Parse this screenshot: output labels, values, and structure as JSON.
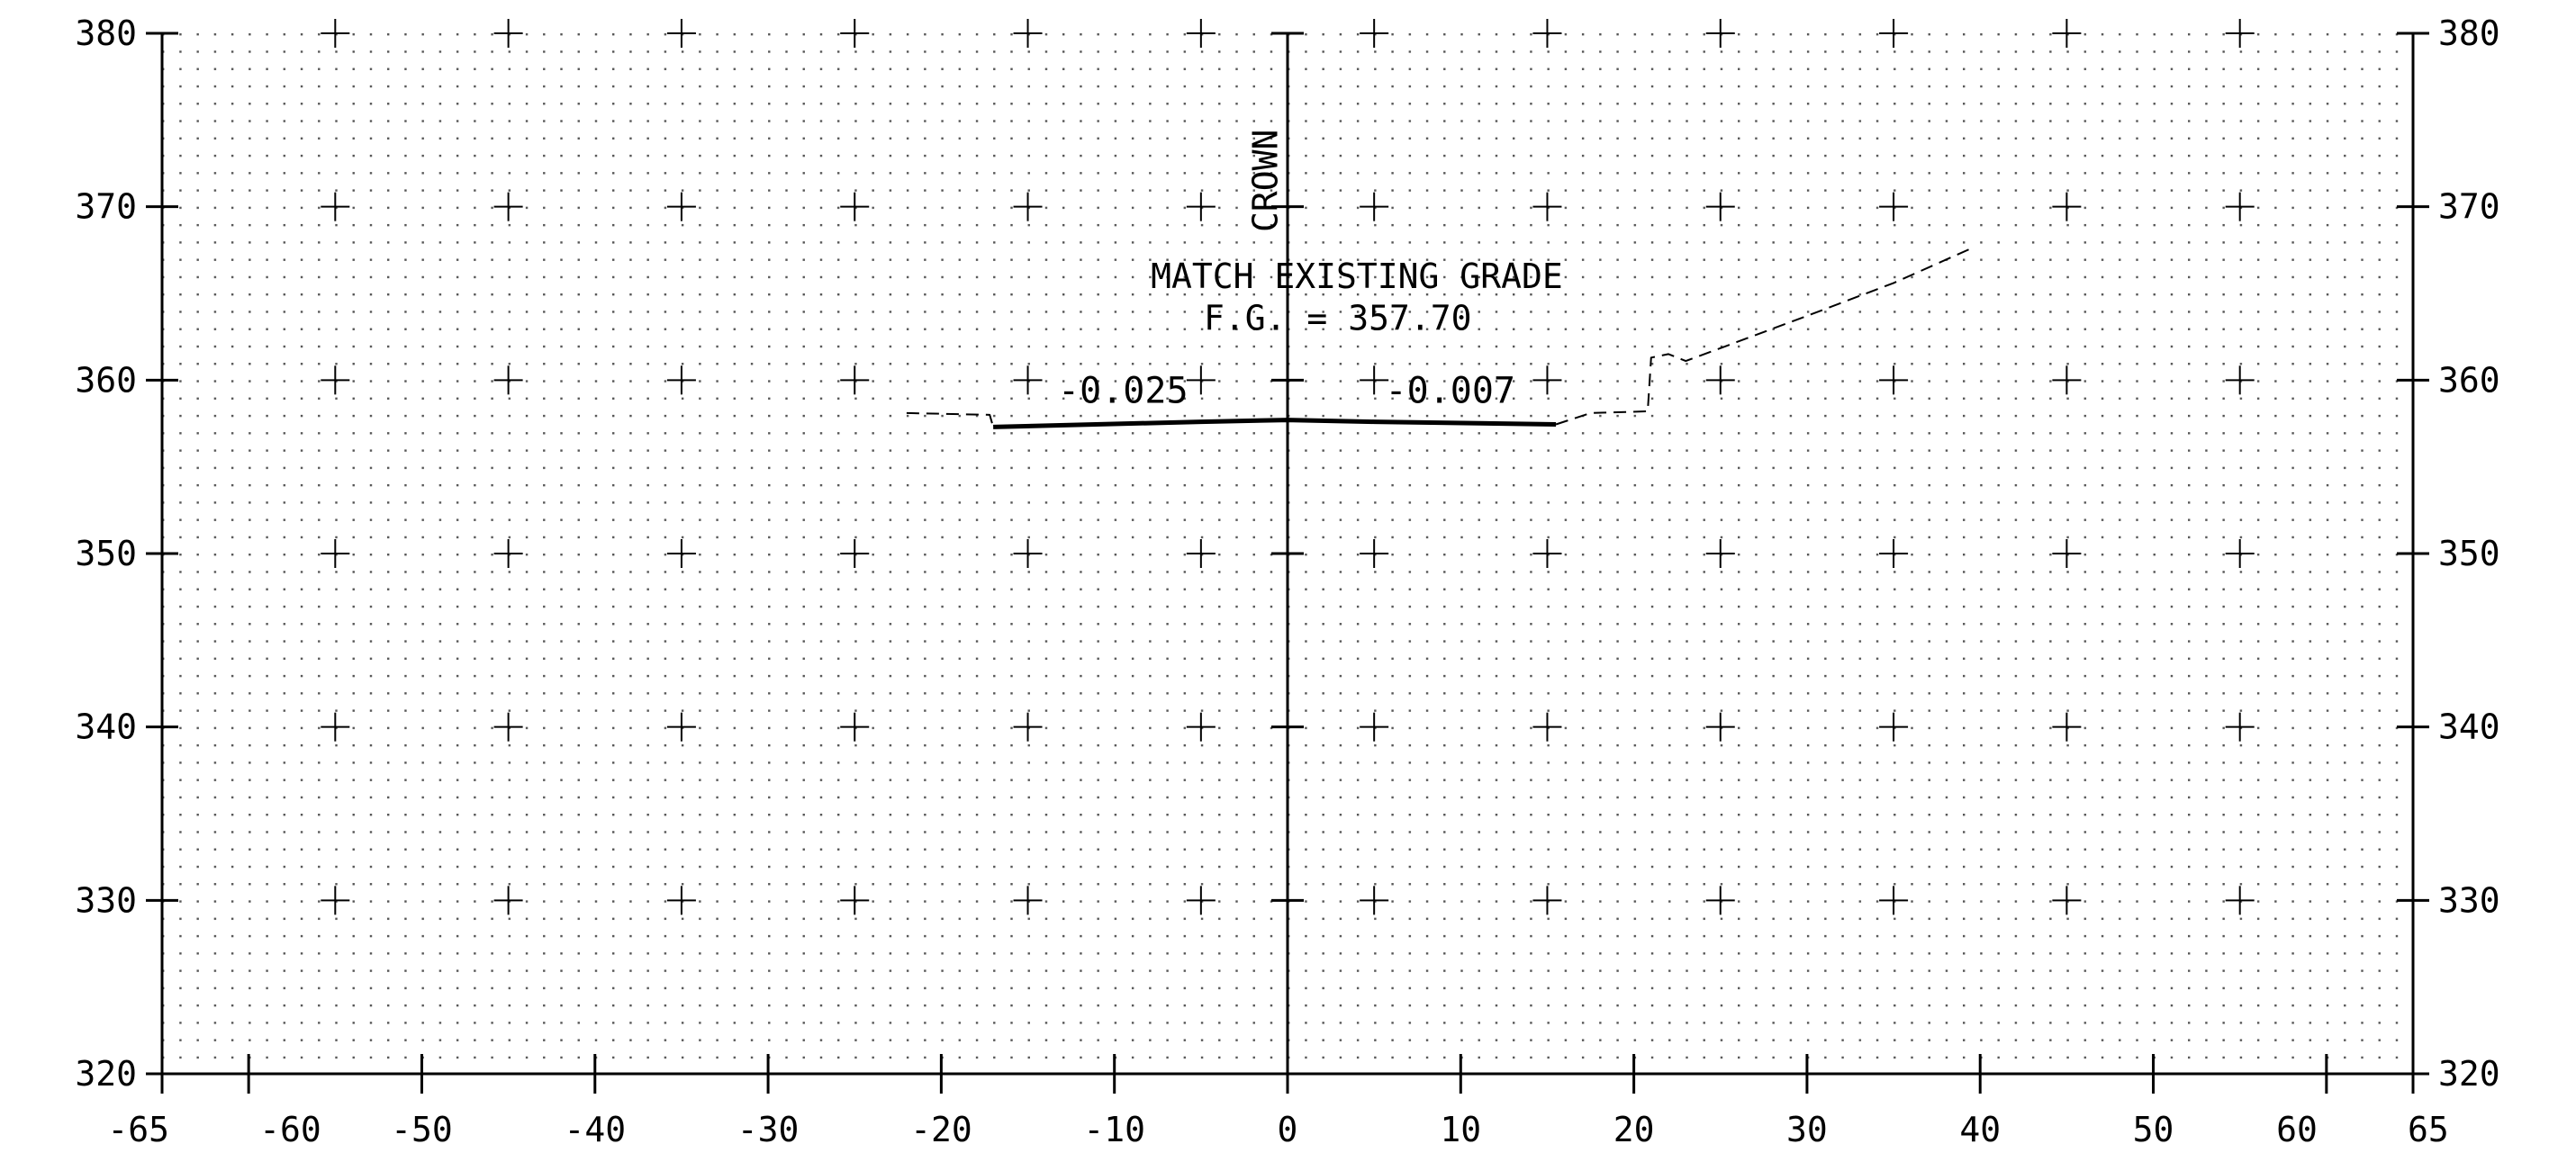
{
  "chart_data": {
    "type": "line",
    "title": "",
    "xlabel": "",
    "ylabel": "",
    "xlim": [
      -65,
      65
    ],
    "ylim": [
      320,
      380
    ],
    "x_tick_labels": [
      "-65",
      "-60",
      "-50",
      "-40",
      "-30",
      "-20",
      "-10",
      "0",
      "10",
      "20",
      "30",
      "40",
      "50",
      "60",
      "65"
    ],
    "y_tick_labels": [
      "380",
      "370",
      "360",
      "350",
      "340",
      "330",
      "320"
    ],
    "grid": true,
    "series": [
      {
        "style": "solid-heavy",
        "points": [
          [
            -17,
            357.3
          ],
          [
            -5,
            357.6
          ],
          [
            0,
            357.7
          ],
          [
            5,
            357.6
          ],
          [
            15.5,
            357.45
          ]
        ]
      },
      {
        "style": "dashed",
        "points": [
          [
            -22,
            358.1
          ],
          [
            -17.2,
            358.0
          ],
          [
            -17,
            357.3
          ]
        ]
      },
      {
        "style": "dashed",
        "points": [
          [
            15.5,
            357.45
          ],
          [
            17.5,
            358.1
          ],
          [
            20.8,
            358.2
          ],
          [
            21,
            361.3
          ],
          [
            22,
            361.5
          ],
          [
            23,
            361.1
          ],
          [
            30,
            363.7
          ],
          [
            35,
            365.6
          ],
          [
            39.5,
            367.6
          ]
        ]
      }
    ],
    "annotations": {
      "crown_label": "CROWN",
      "note_line1": "MATCH EXISTING GRADE",
      "note_line2": "F.G. = 357.70",
      "slope_left": "-0.025",
      "slope_right": "-0.007"
    }
  }
}
